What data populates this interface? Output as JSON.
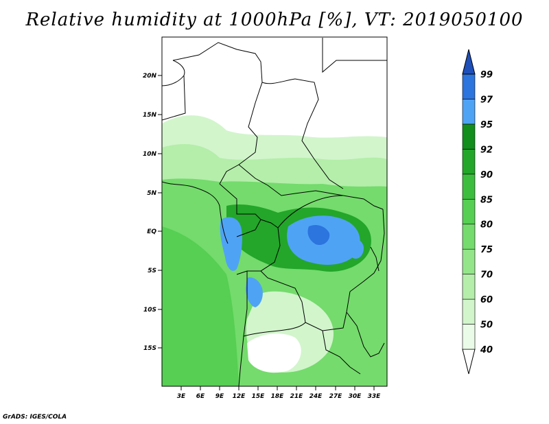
{
  "title": "Relative humidity at 1000hPa [%], VT: 2019050100",
  "credit": "GrADS: IGES/COLA",
  "map": {
    "lat_labels": [
      "20N",
      "15N",
      "10N",
      "5N",
      "EQ",
      "5S",
      "10S",
      "15S"
    ],
    "lon_labels": [
      "3E",
      "6E",
      "9E",
      "12E",
      "15E",
      "18E",
      "21E",
      "24E",
      "27E",
      "30E",
      "33E"
    ]
  },
  "colorbar": {
    "levels": [
      "40",
      "50",
      "60",
      "70",
      "75",
      "80",
      "85",
      "90",
      "92",
      "95",
      "97",
      "99"
    ],
    "colors": [
      "#ffffff",
      "#eafbe8",
      "#d2f5cc",
      "#b4eeaa",
      "#94e58a",
      "#74db6c",
      "#56cf53",
      "#3cbd3e",
      "#23a62a",
      "#118e1c",
      "#4fa3f5",
      "#2c74de",
      "#1f4fb8"
    ]
  }
}
